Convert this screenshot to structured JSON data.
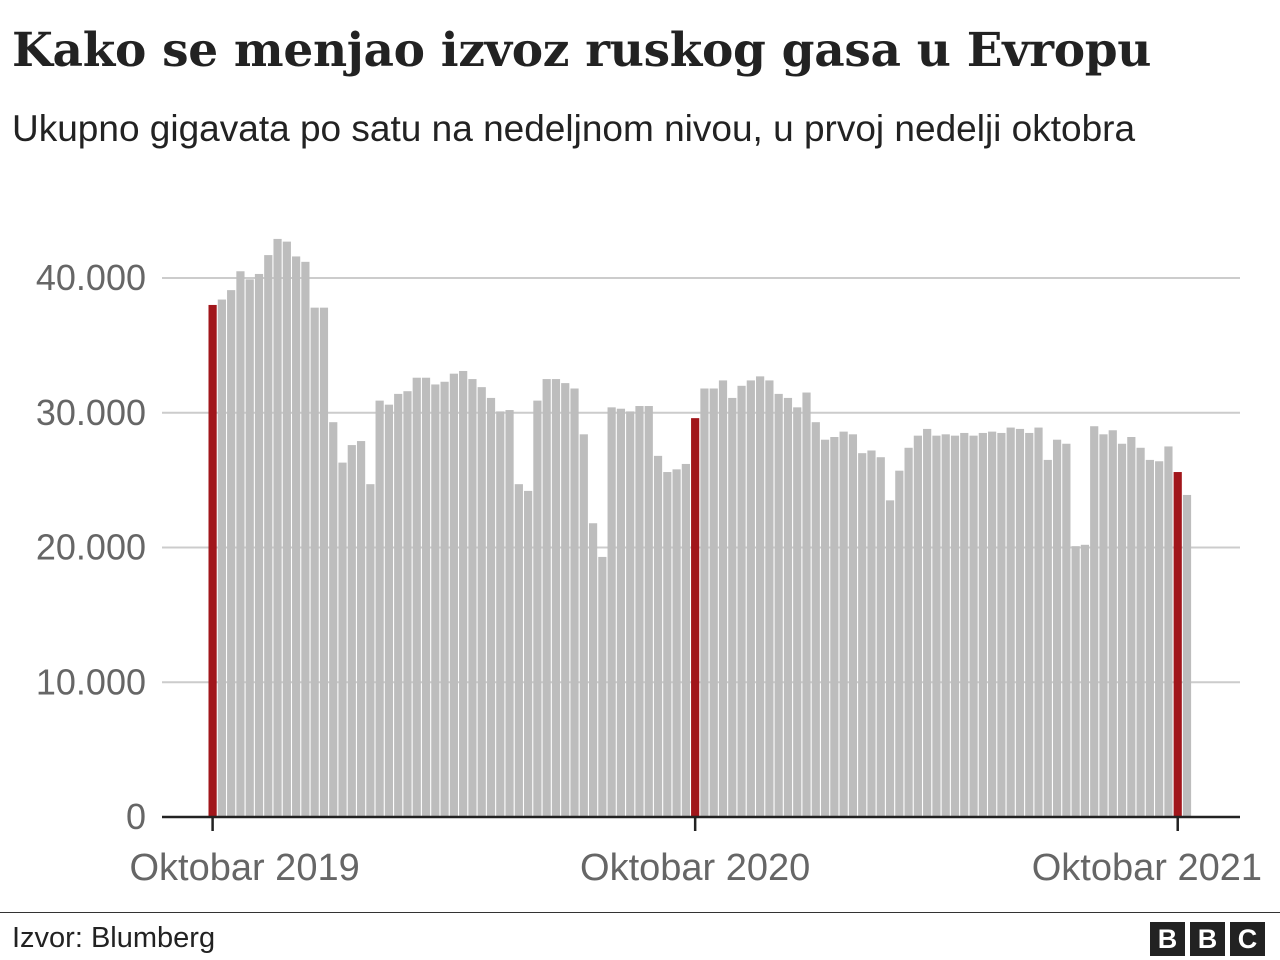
{
  "title": "Kako se menjao izvoz ruskog gasa u Evropu",
  "subtitle": "Ukupno gigavata po satu na nedeljnom nivou, u prvoj nedelji oktobra",
  "source": "Izvor: Blumberg",
  "logo": [
    "B",
    "B",
    "C"
  ],
  "colors": {
    "bar": "#bdbdbd",
    "highlight": "#a1161b",
    "grid": "#cccccc",
    "axis": "#222222",
    "tick_label": "#666666"
  },
  "chart_data": {
    "type": "bar",
    "title": "Kako se menjao izvoz ruskog gasa u Evropu",
    "ylim": [
      0,
      43000
    ],
    "yticks": [
      0,
      10000,
      20000,
      30000,
      40000
    ],
    "ytick_labels": [
      "0",
      "10.000",
      "20.000",
      "30.000",
      "40.000"
    ],
    "xtick_labels": [
      {
        "label": "Oktobar 2019",
        "index": 0
      },
      {
        "label": "Oktobar 2020",
        "index": 52
      },
      {
        "label": "Oktobar 2021",
        "index": 104
      }
    ],
    "highlight_indices": [
      0,
      52,
      104
    ],
    "grid": true,
    "values": [
      38000,
      38400,
      39100,
      40500,
      39900,
      40300,
      41700,
      42900,
      42700,
      41600,
      41200,
      37800,
      37800,
      29300,
      26300,
      27600,
      27900,
      24700,
      30900,
      30600,
      31400,
      31600,
      32600,
      32600,
      32100,
      32300,
      32900,
      33100,
      32500,
      31900,
      31100,
      30100,
      30200,
      24700,
      24200,
      30900,
      32500,
      32500,
      32200,
      31800,
      28400,
      21800,
      19300,
      30400,
      30300,
      30100,
      30500,
      30500,
      26800,
      25600,
      25800,
      26200,
      29600,
      31800,
      31800,
      32400,
      31100,
      32000,
      32400,
      32700,
      32400,
      31400,
      31100,
      30400,
      31500,
      29300,
      28000,
      28200,
      28600,
      28400,
      27000,
      27200,
      26700,
      23500,
      25700,
      27400,
      28300,
      28800,
      28300,
      28400,
      28300,
      28500,
      28300,
      28500,
      28600,
      28500,
      28900,
      28800,
      28500,
      28900,
      26500,
      28000,
      27700,
      20100,
      20200,
      29000,
      28400,
      28700,
      27700,
      28200,
      27400,
      26500,
      26400,
      27500,
      25600,
      23900
    ]
  }
}
